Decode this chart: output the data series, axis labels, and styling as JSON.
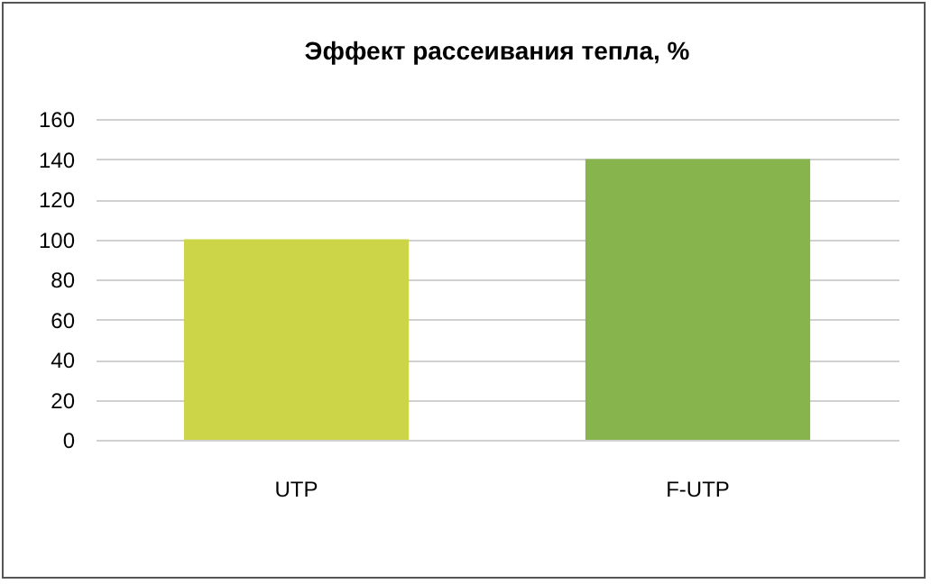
{
  "chart_data": {
    "type": "bar",
    "title": "Эффект рассеивания тепла, %",
    "categories": [
      "UTP",
      "F-UTP"
    ],
    "values": [
      100,
      140
    ],
    "colors": [
      "#ccd547",
      "#88b44e"
    ],
    "ylim": [
      0,
      160
    ],
    "yticks": [
      0,
      20,
      40,
      60,
      80,
      100,
      120,
      140,
      160
    ],
    "grid": "y",
    "legend": false
  }
}
